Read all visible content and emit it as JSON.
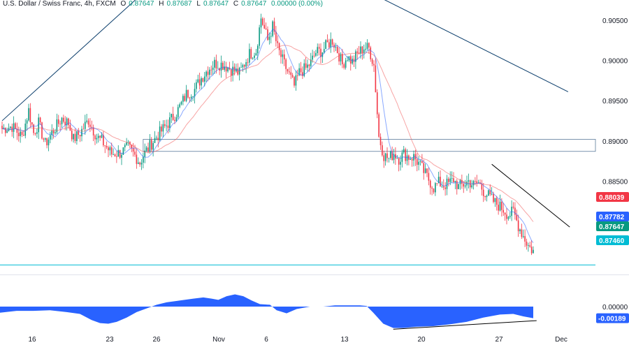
{
  "header": {
    "symbol": "U.S. Dollar / Swiss Franc, 4h, FXCM",
    "o_label": "O",
    "o": "0.87647",
    "h_label": "H",
    "h": "0.87687",
    "l_label": "L",
    "l": "0.87647",
    "c_label": "C",
    "c": "0.87647",
    "change": "0.00000 (0.00%)"
  },
  "chart_data": [
    {
      "type": "candlestick",
      "title": "U.S. Dollar / Swiss Franc, 4h, FXCM",
      "x_ticks": [
        "16",
        "23",
        "26",
        "Nov",
        "6",
        "13",
        "20",
        "27",
        "Dec"
      ],
      "y_ticks": [
        "0.90500",
        "0.90000",
        "0.89500",
        "0.89000",
        "0.88500"
      ],
      "ylim": [
        0.8735,
        0.9075
      ],
      "grid": false,
      "price_labels": [
        {
          "value": "0.88039",
          "color": "#f23645"
        },
        {
          "value": "0.87782",
          "color": "#2962ff"
        },
        {
          "value": "0.87647",
          "color": "#089981"
        },
        {
          "value": "0.87460",
          "color": "#00bcd4"
        }
      ],
      "close_path": [
        [
          0,
          0.8915
        ],
        [
          6,
          0.8918
        ],
        [
          12,
          0.8905
        ],
        [
          16,
          0.8938
        ],
        [
          19,
          0.891
        ],
        [
          22,
          0.8922
        ],
        [
          26,
          0.8896
        ],
        [
          30,
          0.891
        ],
        [
          36,
          0.8928
        ],
        [
          40,
          0.8922
        ],
        [
          43,
          0.8902
        ],
        [
          47,
          0.891
        ],
        [
          52,
          0.8926
        ],
        [
          57,
          0.8905
        ],
        [
          60,
          0.89
        ],
        [
          66,
          0.8884
        ],
        [
          71,
          0.8885
        ],
        [
          76,
          0.8892
        ],
        [
          80,
          0.8882
        ],
        [
          83,
          0.8873
        ],
        [
          85,
          0.8882
        ],
        [
          90,
          0.8897
        ],
        [
          95,
          0.891
        ],
        [
          100,
          0.8922
        ],
        [
          105,
          0.8935
        ],
        [
          108,
          0.8946
        ],
        [
          111,
          0.8958
        ],
        [
          116,
          0.8964
        ],
        [
          120,
          0.8978
        ],
        [
          124,
          0.8989
        ],
        [
          128,
          0.8996
        ],
        [
          133,
          0.8995
        ],
        [
          138,
          0.8989
        ],
        [
          143,
          0.8984
        ],
        [
          149,
          0.9008
        ],
        [
          153,
          0.9012
        ],
        [
          156,
          0.9053
        ],
        [
          160,
          0.9025
        ],
        [
          163,
          0.9042
        ],
        [
          166,
          0.9015
        ],
        [
          170,
          0.8995
        ],
        [
          173,
          0.8982
        ],
        [
          176,
          0.8968
        ],
        [
          179,
          0.8985
        ],
        [
          183,
          0.899
        ],
        [
          186,
          0.8997
        ],
        [
          189,
          0.901
        ],
        [
          193,
          0.9012
        ],
        [
          196,
          0.902
        ],
        [
          199,
          0.9025
        ],
        [
          202,
          0.9012
        ],
        [
          205,
          0.8995
        ],
        [
          208,
          0.9005
        ],
        [
          211,
          0.8998
        ],
        [
          214,
          0.9008
        ],
        [
          218,
          0.9016
        ],
        [
          221,
          0.9015
        ],
        [
          224,
          0.8994
        ],
        [
          227,
          0.8905
        ],
        [
          230,
          0.8882
        ],
        [
          233,
          0.8878
        ],
        [
          236,
          0.8885
        ],
        [
          239,
          0.8878
        ],
        [
          242,
          0.8884
        ],
        [
          245,
          0.888
        ],
        [
          248,
          0.888
        ],
        [
          251,
          0.8872
        ],
        [
          254,
          0.8862
        ],
        [
          257,
          0.8852
        ],
        [
          260,
          0.8842
        ],
        [
          263,
          0.8848
        ],
        [
          266,
          0.8845
        ],
        [
          269,
          0.8847
        ],
        [
          272,
          0.8852
        ],
        [
          275,
          0.8843
        ],
        [
          278,
          0.8846
        ],
        [
          281,
          0.885
        ],
        [
          284,
          0.8845
        ],
        [
          287,
          0.8848
        ],
        [
          290,
          0.8838
        ],
        [
          293,
          0.8832
        ],
        [
          296,
          0.8825
        ],
        [
          299,
          0.882
        ],
        [
          302,
          0.8815
        ],
        [
          305,
          0.8808
        ],
        [
          308,
          0.8812
        ],
        [
          311,
          0.8795
        ],
        [
          314,
          0.8782
        ],
        [
          317,
          0.877
        ],
        [
          319,
          0.8765
        ],
        [
          320,
          0.8765
        ]
      ],
      "candle_count": 321,
      "trend_lines": [
        {
          "from": [
            0,
            0.8925
          ],
          "to": [
            84,
            0.9082
          ],
          "color": "#0a3d6b"
        },
        {
          "from": [
            221,
            0.9085
          ],
          "to": [
            341,
            0.8961
          ],
          "color": "#0a3d6b"
        },
        {
          "from": [
            295,
            0.8871
          ],
          "to": [
            342,
            0.8793
          ],
          "color": "#000000"
        }
      ],
      "zone": {
        "top": 0.8902,
        "bottom": 0.8887,
        "from": 85,
        "to": 341
      },
      "level_line": {
        "value": 0.8746,
        "color": "#00bcd4"
      }
    },
    {
      "type": "area",
      "title": "",
      "y_ticks": [
        "0.00000"
      ],
      "ylim": [
        -0.004,
        0.004
      ],
      "last_value_label": "-0.00189",
      "last_value_color": "#2962ff",
      "series": [
        {
          "color": "#2962ff",
          "values": [
            [
              0,
              -0.001
            ],
            [
              10,
              -0.0007
            ],
            [
              20,
              -0.0007
            ],
            [
              30,
              -0.0006
            ],
            [
              40,
              -0.0009
            ],
            [
              48,
              -0.0012
            ],
            [
              55,
              -0.0022
            ],
            [
              60,
              -0.0027
            ],
            [
              65,
              -0.0028
            ],
            [
              70,
              -0.0025
            ],
            [
              76,
              -0.0018
            ],
            [
              82,
              -0.0009
            ],
            [
              88,
              -0.0003
            ],
            [
              94,
              0.0003
            ],
            [
              100,
              0.0007
            ],
            [
              108,
              0.001
            ],
            [
              116,
              0.0013
            ],
            [
              122,
              0.0015
            ],
            [
              127,
              0.0013
            ],
            [
              131,
              0.0011
            ],
            [
              136,
              0.0017
            ],
            [
              141,
              0.002
            ],
            [
              146,
              0.0017
            ],
            [
              151,
              0.001
            ],
            [
              156,
              0.0004
            ],
            [
              162,
              0.0003
            ],
            [
              166,
              -0.0006
            ],
            [
              172,
              -0.0011
            ],
            [
              178,
              -0.0004
            ],
            [
              186,
              0.0
            ],
            [
              194,
              0.0
            ],
            [
              201,
              0.0002
            ],
            [
              208,
              0.0002
            ],
            [
              216,
              0.0002
            ],
            [
              220,
              0.0001
            ],
            [
              224,
              -0.001
            ],
            [
              230,
              -0.0028
            ],
            [
              236,
              -0.0035
            ],
            [
              242,
              -0.0035
            ],
            [
              250,
              -0.0033
            ],
            [
              260,
              -0.0032
            ],
            [
              270,
              -0.0029
            ],
            [
              280,
              -0.0025
            ],
            [
              290,
              -0.0018
            ],
            [
              300,
              -0.0013
            ],
            [
              308,
              -0.0012
            ],
            [
              314,
              -0.0016
            ],
            [
              320,
              -0.0019
            ]
          ]
        }
      ],
      "trend_line": {
        "from": [
          236,
          -0.0037
        ],
        "to": [
          322,
          -0.0023
        ],
        "color": "#000000"
      }
    }
  ]
}
